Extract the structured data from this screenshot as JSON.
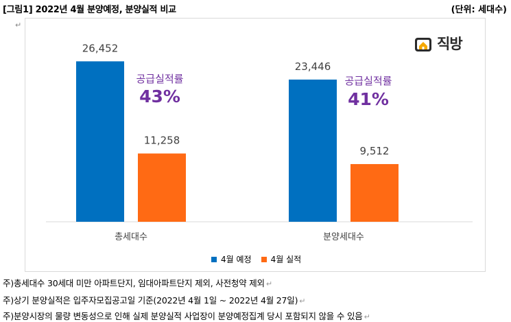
{
  "header": {
    "title": "[그림1] 2022년 4월 분양예정, 분양실적 비교",
    "unit": "(단위: 세대수)"
  },
  "paragraph_mark": "↵",
  "logo": {
    "text": "직방",
    "icon": "house-logo-icon"
  },
  "colors": {
    "plan": "#0070c0",
    "actual": "#ff6a14",
    "annotation": "#7030a0",
    "axis": "#d9d9d9"
  },
  "chart_data": {
    "type": "bar",
    "categories": [
      "총세대수",
      "분양세대수"
    ],
    "series": [
      {
        "name": "4월 예정",
        "values": [
          26452,
          23446
        ]
      },
      {
        "name": "4월 실적",
        "values": [
          11258,
          9512
        ]
      }
    ],
    "data_labels": [
      [
        "26,452",
        "23,446"
      ],
      [
        "11,258",
        "9,512"
      ]
    ],
    "annotations": [
      {
        "label": "공급실적률",
        "value": "43%"
      },
      {
        "label": "공급실적률",
        "value": "41%"
      }
    ],
    "ylim": [
      0,
      30000
    ],
    "legend_position": "bottom",
    "grid": false
  },
  "notes": [
    "주)총세대수 30세대 미만 아파트단지, 임대아파트단지 제외, 사전청약 제외",
    "주)상기 분양실적은 입주자모집공고일 기준(2022년 4월 1일 ~ 2022년 4월 27일)",
    "주)분양시장의 물량 변동성으로 인해 실제 분양실적 사업장이 분양예정집계 당시 포함되지 않을 수 있음"
  ]
}
